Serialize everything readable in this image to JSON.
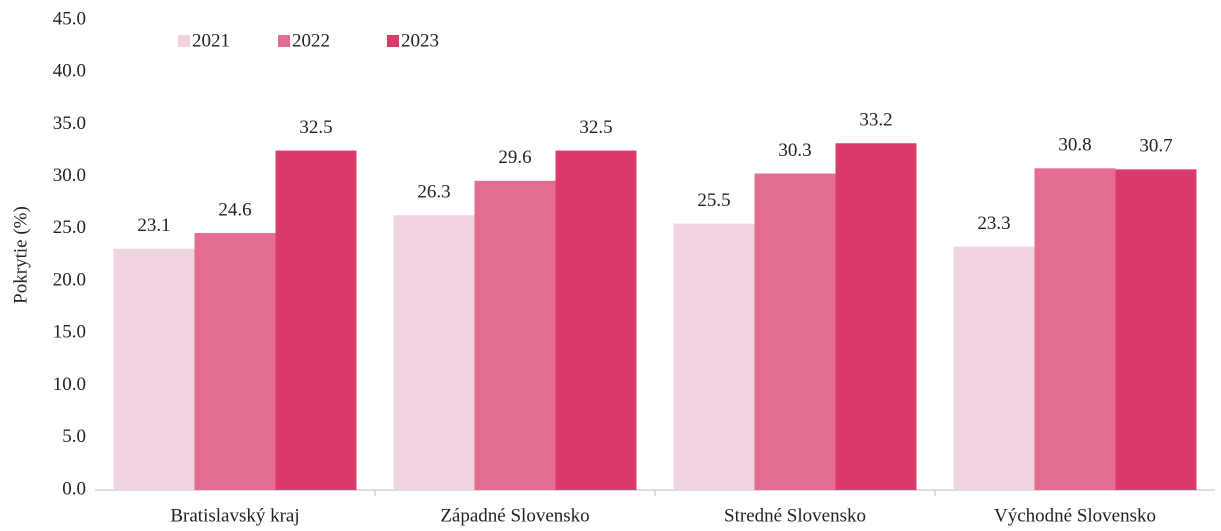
{
  "chart_data": {
    "type": "bar",
    "y_label": "Pokrytie  (%)",
    "categories": [
      "Bratislavský kraj",
      "Západné Slovensko",
      "Stredné Slovensko",
      "Východné Slovensko"
    ],
    "series": [
      {
        "name": "2021",
        "color": "#f0d3e0",
        "values": [
          23.1,
          26.3,
          25.5,
          23.3
        ]
      },
      {
        "name": "2022",
        "color": "#e56d90",
        "values": [
          24.6,
          29.6,
          30.3,
          30.8
        ]
      },
      {
        "name": "2023",
        "color": "#db3b6b",
        "values": [
          32.5,
          32.5,
          33.2,
          30.7
        ]
      }
    ],
    "ylim": [
      0,
      45
    ],
    "yticks": [
      {
        "value": 0,
        "label": "0.0"
      },
      {
        "value": 5,
        "label": "5.0"
      },
      {
        "value": 10,
        "label": "10.0"
      },
      {
        "value": 15,
        "label": "15.0"
      },
      {
        "value": 20,
        "label": "20.0"
      },
      {
        "value": 25,
        "label": "25.0"
      },
      {
        "value": 30,
        "label": "30.0"
      },
      {
        "value": 35,
        "label": "35.0"
      },
      {
        "value": 40,
        "label": "40.0"
      },
      {
        "value": 45,
        "label": "45.0"
      }
    ],
    "legend": "top-left",
    "grid": false
  }
}
